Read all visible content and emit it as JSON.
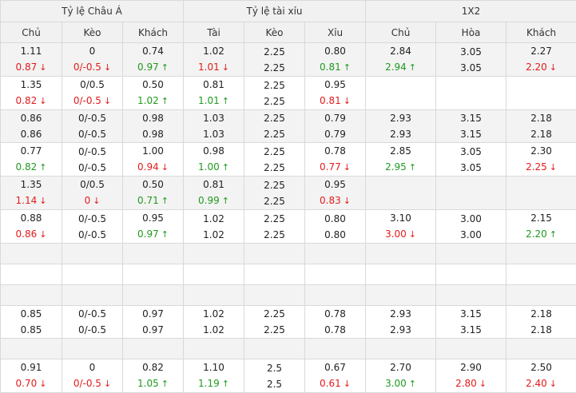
{
  "header": {
    "groups": [
      "Tỷ lệ Châu Á",
      "Tỷ lệ tài xỉu",
      "1X2"
    ],
    "columns": [
      "Chủ",
      "Kèo",
      "Khách",
      "Tài",
      "Kèo",
      "Xỉu",
      "Chủ",
      "Hòa",
      "Khách"
    ]
  },
  "colors": {
    "up": "#1f9a1f",
    "down": "#e31b1b"
  },
  "rows": [
    {
      "cells": [
        [
          {
            "v": "1.11"
          },
          {
            "v": "0.87",
            "d": "down"
          }
        ],
        [
          {
            "v": "0"
          },
          {
            "v": "0/-0.5",
            "d": "down"
          }
        ],
        [
          {
            "v": "0.74"
          },
          {
            "v": "0.97",
            "d": "up"
          }
        ],
        [
          {
            "v": "1.02"
          },
          {
            "v": "1.01",
            "d": "down"
          }
        ],
        [
          {
            "v": "2.25"
          },
          {
            "v": "2.25"
          }
        ],
        [
          {
            "v": "0.80"
          },
          {
            "v": "0.81",
            "d": "up"
          }
        ],
        [
          {
            "v": "2.84"
          },
          {
            "v": "2.94",
            "d": "up"
          }
        ],
        [
          {
            "v": "3.05"
          },
          {
            "v": "3.05"
          }
        ],
        [
          {
            "v": "2.27"
          },
          {
            "v": "2.20",
            "d": "down"
          }
        ]
      ]
    },
    {
      "cells": [
        [
          {
            "v": "1.35"
          },
          {
            "v": "0.82",
            "d": "down"
          }
        ],
        [
          {
            "v": "0/0.5"
          },
          {
            "v": "0/-0.5",
            "d": "down"
          }
        ],
        [
          {
            "v": "0.50"
          },
          {
            "v": "1.02",
            "d": "up"
          }
        ],
        [
          {
            "v": "0.81"
          },
          {
            "v": "1.01",
            "d": "up"
          }
        ],
        [
          {
            "v": "2.25"
          },
          {
            "v": "2.25"
          }
        ],
        [
          {
            "v": "0.95"
          },
          {
            "v": "0.81",
            "d": "down"
          }
        ],
        [],
        [],
        []
      ]
    },
    {
      "cells": [
        [
          {
            "v": "0.86"
          },
          {
            "v": "0.86"
          }
        ],
        [
          {
            "v": "0/-0.5"
          },
          {
            "v": "0/-0.5"
          }
        ],
        [
          {
            "v": "0.98"
          },
          {
            "v": "0.98"
          }
        ],
        [
          {
            "v": "1.03"
          },
          {
            "v": "1.03"
          }
        ],
        [
          {
            "v": "2.25"
          },
          {
            "v": "2.25"
          }
        ],
        [
          {
            "v": "0.79"
          },
          {
            "v": "0.79"
          }
        ],
        [
          {
            "v": "2.93"
          },
          {
            "v": "2.93"
          }
        ],
        [
          {
            "v": "3.15"
          },
          {
            "v": "3.15"
          }
        ],
        [
          {
            "v": "2.18"
          },
          {
            "v": "2.18"
          }
        ]
      ]
    },
    {
      "cells": [
        [
          {
            "v": "0.77"
          },
          {
            "v": "0.82",
            "d": "up"
          }
        ],
        [
          {
            "v": "0/-0.5"
          },
          {
            "v": "0/-0.5"
          }
        ],
        [
          {
            "v": "1.00"
          },
          {
            "v": "0.94",
            "d": "down"
          }
        ],
        [
          {
            "v": "0.98"
          },
          {
            "v": "1.00",
            "d": "up"
          }
        ],
        [
          {
            "v": "2.25"
          },
          {
            "v": "2.25"
          }
        ],
        [
          {
            "v": "0.78"
          },
          {
            "v": "0.77",
            "d": "down"
          }
        ],
        [
          {
            "v": "2.85"
          },
          {
            "v": "2.95",
            "d": "up"
          }
        ],
        [
          {
            "v": "3.05"
          },
          {
            "v": "3.05"
          }
        ],
        [
          {
            "v": "2.30"
          },
          {
            "v": "2.25",
            "d": "down"
          }
        ]
      ]
    },
    {
      "cells": [
        [
          {
            "v": "1.35"
          },
          {
            "v": "1.14",
            "d": "down"
          }
        ],
        [
          {
            "v": "0/0.5"
          },
          {
            "v": "0",
            "d": "down"
          }
        ],
        [
          {
            "v": "0.50"
          },
          {
            "v": "0.71",
            "d": "up"
          }
        ],
        [
          {
            "v": "0.81"
          },
          {
            "v": "0.99",
            "d": "up"
          }
        ],
        [
          {
            "v": "2.25"
          },
          {
            "v": "2.25"
          }
        ],
        [
          {
            "v": "0.95"
          },
          {
            "v": "0.83",
            "d": "down"
          }
        ],
        [],
        [],
        []
      ]
    },
    {
      "cells": [
        [
          {
            "v": "0.88"
          },
          {
            "v": "0.86",
            "d": "down"
          }
        ],
        [
          {
            "v": "0/-0.5"
          },
          {
            "v": "0/-0.5"
          }
        ],
        [
          {
            "v": "0.95"
          },
          {
            "v": "0.97",
            "d": "up"
          }
        ],
        [
          {
            "v": "1.02"
          },
          {
            "v": "1.02"
          }
        ],
        [
          {
            "v": "2.25"
          },
          {
            "v": "2.25"
          }
        ],
        [
          {
            "v": "0.80"
          },
          {
            "v": "0.80"
          }
        ],
        [
          {
            "v": "3.10"
          },
          {
            "v": "3.00",
            "d": "down"
          }
        ],
        [
          {
            "v": "3.00"
          },
          {
            "v": "3.00"
          }
        ],
        [
          {
            "v": "2.15"
          },
          {
            "v": "2.20",
            "d": "up"
          }
        ]
      ]
    },
    {
      "empty": true
    },
    {
      "empty": true
    },
    {
      "empty": true
    },
    {
      "cells": [
        [
          {
            "v": "0.85"
          },
          {
            "v": "0.85"
          }
        ],
        [
          {
            "v": "0/-0.5"
          },
          {
            "v": "0/-0.5"
          }
        ],
        [
          {
            "v": "0.97"
          },
          {
            "v": "0.97"
          }
        ],
        [
          {
            "v": "1.02"
          },
          {
            "v": "1.02"
          }
        ],
        [
          {
            "v": "2.25"
          },
          {
            "v": "2.25"
          }
        ],
        [
          {
            "v": "0.78"
          },
          {
            "v": "0.78"
          }
        ],
        [
          {
            "v": "2.93"
          },
          {
            "v": "2.93"
          }
        ],
        [
          {
            "v": "3.15"
          },
          {
            "v": "3.15"
          }
        ],
        [
          {
            "v": "2.18"
          },
          {
            "v": "2.18"
          }
        ]
      ]
    },
    {
      "empty": true
    },
    {
      "cells": [
        [
          {
            "v": "0.91"
          },
          {
            "v": "0.70",
            "d": "down"
          }
        ],
        [
          {
            "v": "0"
          },
          {
            "v": "0/-0.5",
            "d": "down"
          }
        ],
        [
          {
            "v": "0.82"
          },
          {
            "v": "1.05",
            "d": "up"
          }
        ],
        [
          {
            "v": "1.10"
          },
          {
            "v": "1.19",
            "d": "up"
          }
        ],
        [
          {
            "v": "2.5"
          },
          {
            "v": "2.5"
          }
        ],
        [
          {
            "v": "0.67"
          },
          {
            "v": "0.61",
            "d": "down"
          }
        ],
        [
          {
            "v": "2.70"
          },
          {
            "v": "3.00",
            "d": "up"
          }
        ],
        [
          {
            "v": "2.90"
          },
          {
            "v": "2.80",
            "d": "down"
          }
        ],
        [
          {
            "v": "2.50"
          },
          {
            "v": "2.40",
            "d": "down"
          }
        ]
      ]
    }
  ]
}
